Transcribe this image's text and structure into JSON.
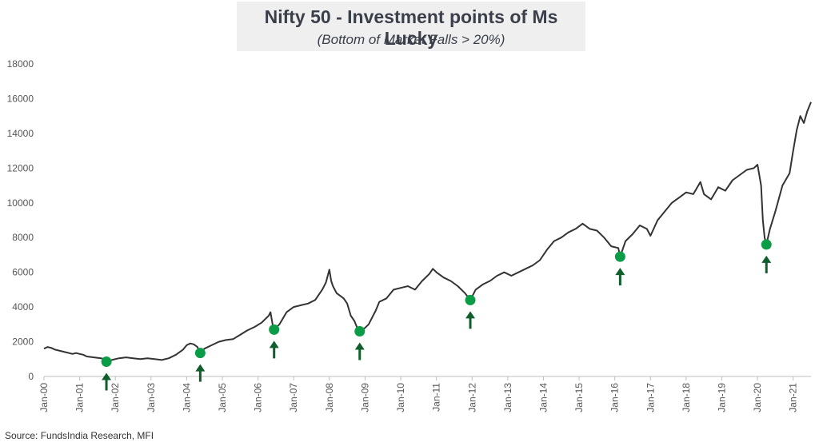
{
  "chart_data": {
    "type": "line",
    "title": "Nifty 50 - Investment points of Ms Lucky",
    "subtitle": "(Bottom of Market Falls > 20%)",
    "xlabel": "",
    "ylabel": "",
    "ylim": [
      0,
      18000
    ],
    "yticks": [
      0,
      2000,
      4000,
      6000,
      8000,
      10000,
      12000,
      14000,
      16000,
      18000
    ],
    "xlim": [
      0,
      21.5
    ],
    "x_tick_labels": [
      "Jan-00",
      "Jan-01",
      "Jan-02",
      "Jan-03",
      "Jan-04",
      "Jan-05",
      "Jan-06",
      "Jan-07",
      "Jan-08",
      "Jan-09",
      "Jan-10",
      "Jan-11",
      "Jan-12",
      "Jan-13",
      "Jan-14",
      "Jan-15",
      "Jan-16",
      "Jan-17",
      "Jan-18",
      "Jan-19",
      "Jan-20",
      "Jan-21"
    ],
    "grid": false,
    "series": [
      {
        "name": "Nifty 50",
        "color": "#333333",
        "points": [
          [
            0.0,
            1600
          ],
          [
            0.1,
            1700
          ],
          [
            0.2,
            1650
          ],
          [
            0.3,
            1550
          ],
          [
            0.4,
            1500
          ],
          [
            0.5,
            1450
          ],
          [
            0.6,
            1400
          ],
          [
            0.7,
            1350
          ],
          [
            0.8,
            1300
          ],
          [
            0.9,
            1350
          ],
          [
            1.0,
            1300
          ],
          [
            1.1,
            1250
          ],
          [
            1.2,
            1150
          ],
          [
            1.4,
            1100
          ],
          [
            1.6,
            1050
          ],
          [
            1.7,
            1000
          ],
          [
            1.75,
            850
          ],
          [
            1.9,
            950
          ],
          [
            2.1,
            1050
          ],
          [
            2.3,
            1100
          ],
          [
            2.5,
            1050
          ],
          [
            2.7,
            1000
          ],
          [
            2.9,
            1050
          ],
          [
            3.1,
            1000
          ],
          [
            3.3,
            950
          ],
          [
            3.5,
            1050
          ],
          [
            3.7,
            1250
          ],
          [
            3.9,
            1550
          ],
          [
            4.0,
            1800
          ],
          [
            4.1,
            1900
          ],
          [
            4.2,
            1850
          ],
          [
            4.3,
            1700
          ],
          [
            4.38,
            1350
          ],
          [
            4.5,
            1600
          ],
          [
            4.7,
            1800
          ],
          [
            4.9,
            2000
          ],
          [
            5.1,
            2100
          ],
          [
            5.3,
            2150
          ],
          [
            5.5,
            2400
          ],
          [
            5.7,
            2650
          ],
          [
            5.9,
            2850
          ],
          [
            6.1,
            3100
          ],
          [
            6.2,
            3300
          ],
          [
            6.3,
            3500
          ],
          [
            6.35,
            3700
          ],
          [
            6.42,
            2850
          ],
          [
            6.45,
            2700
          ],
          [
            6.6,
            3000
          ],
          [
            6.8,
            3700
          ],
          [
            7.0,
            4000
          ],
          [
            7.2,
            4100
          ],
          [
            7.4,
            4200
          ],
          [
            7.6,
            4400
          ],
          [
            7.8,
            5000
          ],
          [
            7.9,
            5400
          ],
          [
            8.0,
            6150
          ],
          [
            8.05,
            5500
          ],
          [
            8.1,
            5200
          ],
          [
            8.2,
            4800
          ],
          [
            8.4,
            4500
          ],
          [
            8.5,
            4200
          ],
          [
            8.6,
            3500
          ],
          [
            8.7,
            3200
          ],
          [
            8.8,
            2700
          ],
          [
            8.85,
            2600
          ],
          [
            9.0,
            2800
          ],
          [
            9.1,
            3000
          ],
          [
            9.2,
            3400
          ],
          [
            9.3,
            3800
          ],
          [
            9.4,
            4300
          ],
          [
            9.6,
            4500
          ],
          [
            9.8,
            5000
          ],
          [
            10.0,
            5100
          ],
          [
            10.2,
            5200
          ],
          [
            10.4,
            5000
          ],
          [
            10.6,
            5500
          ],
          [
            10.8,
            5900
          ],
          [
            10.9,
            6200
          ],
          [
            11.0,
            6000
          ],
          [
            11.2,
            5700
          ],
          [
            11.4,
            5500
          ],
          [
            11.6,
            5200
          ],
          [
            11.8,
            4800
          ],
          [
            11.95,
            4400
          ],
          [
            12.1,
            5000
          ],
          [
            12.3,
            5300
          ],
          [
            12.5,
            5500
          ],
          [
            12.7,
            5800
          ],
          [
            12.9,
            6000
          ],
          [
            13.1,
            5800
          ],
          [
            13.3,
            6000
          ],
          [
            13.5,
            6200
          ],
          [
            13.7,
            6400
          ],
          [
            13.9,
            6700
          ],
          [
            14.1,
            7300
          ],
          [
            14.3,
            7800
          ],
          [
            14.5,
            8000
          ],
          [
            14.7,
            8300
          ],
          [
            14.9,
            8500
          ],
          [
            15.1,
            8800
          ],
          [
            15.3,
            8500
          ],
          [
            15.5,
            8400
          ],
          [
            15.7,
            8000
          ],
          [
            15.9,
            7500
          ],
          [
            16.1,
            7400
          ],
          [
            16.15,
            6900
          ],
          [
            16.3,
            7800
          ],
          [
            16.5,
            8200
          ],
          [
            16.7,
            8700
          ],
          [
            16.9,
            8500
          ],
          [
            17.0,
            8100
          ],
          [
            17.2,
            9000
          ],
          [
            17.4,
            9500
          ],
          [
            17.6,
            10000
          ],
          [
            17.8,
            10300
          ],
          [
            18.0,
            10600
          ],
          [
            18.2,
            10500
          ],
          [
            18.4,
            11200
          ],
          [
            18.5,
            10500
          ],
          [
            18.7,
            10200
          ],
          [
            18.9,
            10900
          ],
          [
            19.1,
            10700
          ],
          [
            19.3,
            11300
          ],
          [
            19.5,
            11600
          ],
          [
            19.7,
            11900
          ],
          [
            19.9,
            12000
          ],
          [
            20.0,
            12200
          ],
          [
            20.1,
            11000
          ],
          [
            20.15,
            9000
          ],
          [
            20.2,
            8000
          ],
          [
            20.25,
            7600
          ],
          [
            20.35,
            8500
          ],
          [
            20.5,
            9500
          ],
          [
            20.7,
            11000
          ],
          [
            20.9,
            11700
          ],
          [
            21.0,
            13000
          ],
          [
            21.1,
            14200
          ],
          [
            21.2,
            15000
          ],
          [
            21.3,
            14600
          ],
          [
            21.4,
            15300
          ],
          [
            21.5,
            15800
          ]
        ]
      },
      {
        "name": "Investment points",
        "color": "#0b9c47",
        "points": [
          [
            1.75,
            850
          ],
          [
            4.38,
            1350
          ],
          [
            6.45,
            2700
          ],
          [
            8.85,
            2600
          ],
          [
            11.95,
            4400
          ],
          [
            16.15,
            6900
          ],
          [
            20.25,
            7600
          ]
        ]
      }
    ]
  },
  "footer": {
    "source": "Source: FundsIndia Research, MFI"
  }
}
